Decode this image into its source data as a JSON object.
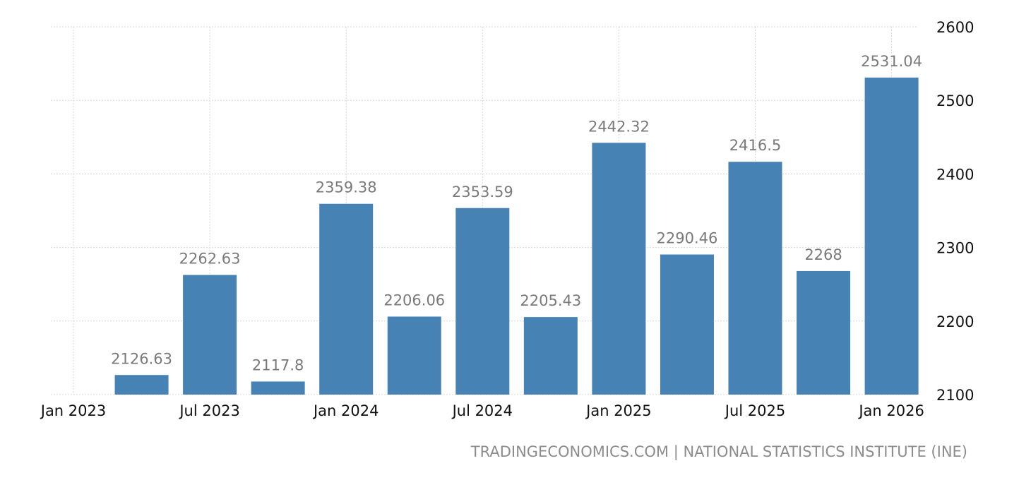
{
  "source": "TRADINGECONOMICS.COM | NATIONAL STATISTICS INSTITUTE (INE)",
  "chart_data": {
    "type": "bar",
    "categories": [
      "Jan 2023",
      "Apr 2023",
      "Jul 2023",
      "Oct 2023",
      "Jan 2024",
      "Apr 2024",
      "Jul 2024",
      "Oct 2024",
      "Jan 2025",
      "Apr 2025",
      "Jul 2025",
      "Oct 2025",
      "Jan 2026"
    ],
    "values": [
      null,
      2126.63,
      2262.63,
      2117.8,
      2359.38,
      2206.06,
      2353.59,
      2205.43,
      2442.32,
      2290.46,
      2416.5,
      2268,
      2531.04
    ],
    "value_labels": [
      "",
      "2126.63",
      "2262.63",
      "2117.8",
      "2359.38",
      "2206.06",
      "2353.59",
      "2205.43",
      "2442.32",
      "2290.46",
      "2416.5",
      "2268",
      "2531.04"
    ],
    "x_tick_labels": [
      "Jan 2023",
      "Jul 2023",
      "Jan 2024",
      "Jul 2024",
      "Jan 2025",
      "Jul 2025",
      "Jan 2026"
    ],
    "y_ticks": [
      2100,
      2200,
      2300,
      2400,
      2500,
      2600
    ],
    "ylim": [
      2100,
      2600
    ],
    "yaxis_side": "right",
    "grid": true,
    "color": "#4682b4",
    "title": "",
    "xlabel": "",
    "ylabel": ""
  }
}
